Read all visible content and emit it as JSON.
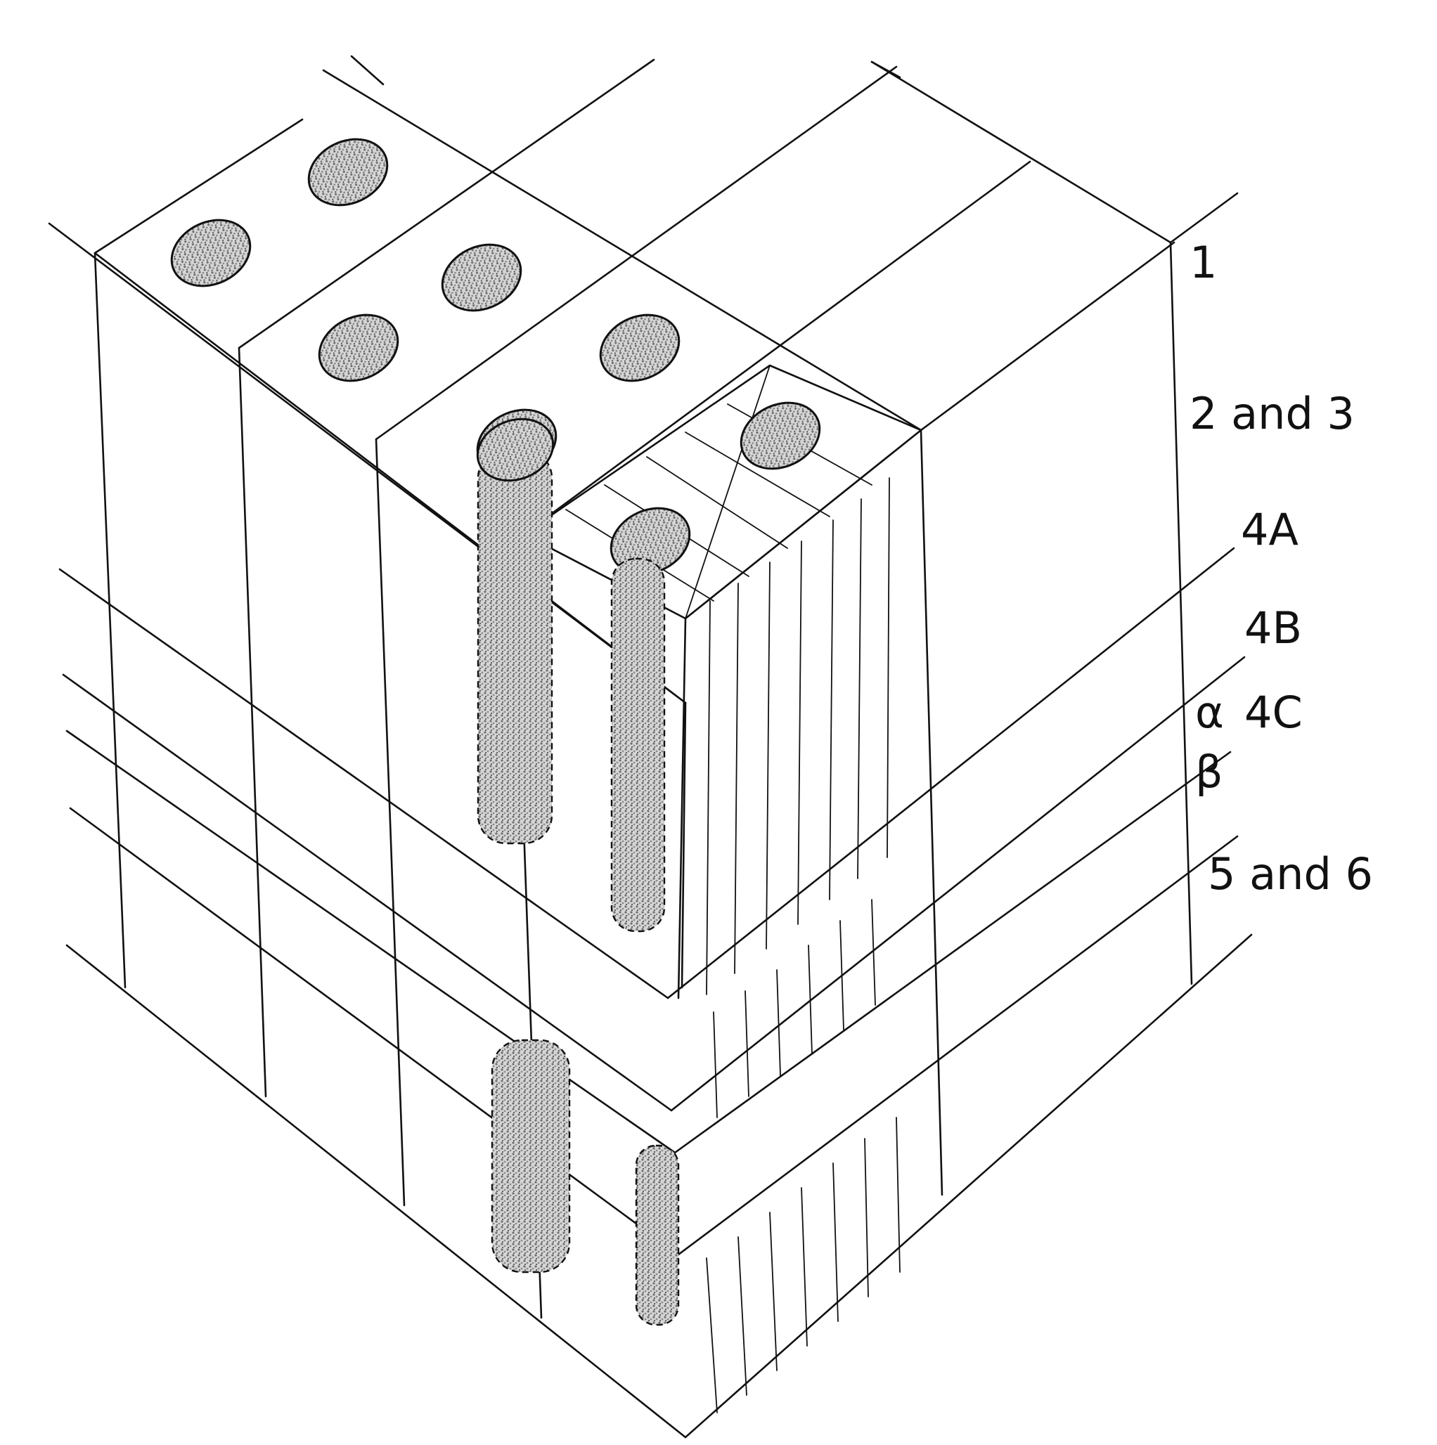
{
  "labels": {
    "l1": "1",
    "l2and3": "2 and 3",
    "l4A": "4A",
    "l4B": "4B",
    "alpha": "α",
    "l4C": "4C",
    "beta": "β",
    "l5and6": "5 and 6"
  },
  "colors": {
    "line": "#111111",
    "stipple": "#9a9a9a",
    "background": "#ffffff"
  }
}
